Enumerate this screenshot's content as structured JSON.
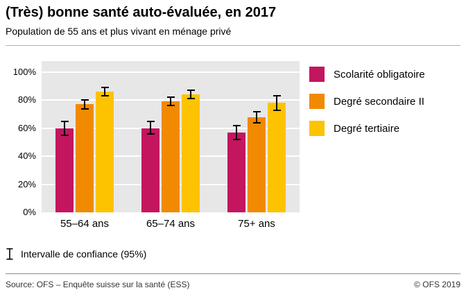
{
  "chart_data": {
    "type": "bar",
    "title": "(Très) bonne santé auto-évaluée, en 2017",
    "subtitle": "Population de 55 ans et plus vivant en ménage privé",
    "categories": [
      "55–64 ans",
      "65–74 ans",
      "75+ ans"
    ],
    "series": [
      {
        "name": "Scolarité obligatoire",
        "color": "#c4155f",
        "values": [
          60,
          60,
          57
        ],
        "ci_low": [
          55,
          56,
          52
        ],
        "ci_high": [
          65,
          65,
          62
        ]
      },
      {
        "name": "Degré secondaire II",
        "color": "#f18a00",
        "values": [
          77,
          79,
          68
        ],
        "ci_low": [
          74,
          76,
          64
        ],
        "ci_high": [
          80,
          82,
          72
        ]
      },
      {
        "name": "Degré tertiaire",
        "color": "#fdc300",
        "values": [
          86,
          84,
          78
        ],
        "ci_low": [
          83,
          81,
          73
        ],
        "ci_high": [
          89,
          87,
          83
        ]
      }
    ],
    "ylim": [
      0,
      100
    ],
    "yticks": [
      "100%",
      "80%",
      "60%",
      "40%",
      "20%",
      "0%"
    ],
    "grid": true,
    "legend_position": "right",
    "plot_background": "#e7e7e7",
    "error_bars": true
  },
  "ci_note": "Intervalle de confiance (95%)",
  "footer": {
    "source": "Source: OFS – Enquête suisse sur la santé (ESS)",
    "copyright": "© OFS 2019"
  }
}
